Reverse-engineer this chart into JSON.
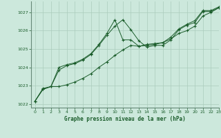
{
  "title": "Graphe pression niveau de la mer (hPa)",
  "background_color": "#cce8dc",
  "grid_color": "#aaccbb",
  "line_color": "#1a5c2a",
  "xlim": [
    -0.5,
    23
  ],
  "ylim": [
    1021.8,
    1027.6
  ],
  "yticks": [
    1022,
    1023,
    1024,
    1025,
    1026,
    1027
  ],
  "xticks": [
    0,
    1,
    2,
    3,
    4,
    5,
    6,
    7,
    8,
    9,
    10,
    11,
    12,
    13,
    14,
    15,
    16,
    17,
    18,
    19,
    20,
    21,
    22,
    23
  ],
  "series1_x": [
    0,
    1,
    2,
    3,
    4,
    5,
    6,
    7,
    8,
    9,
    10,
    11,
    12,
    13,
    14,
    15,
    16,
    17,
    18,
    19,
    20,
    21,
    22,
    23
  ],
  "series1_y": [
    1022.15,
    1022.85,
    1022.95,
    1023.85,
    1024.1,
    1024.2,
    1024.4,
    1024.7,
    1025.2,
    1025.75,
    1026.25,
    1026.6,
    1026.05,
    1025.45,
    1025.1,
    1025.2,
    1025.2,
    1025.5,
    1026.05,
    1026.3,
    1026.45,
    1027.05,
    1027.05,
    1027.25
  ],
  "series2_x": [
    0,
    1,
    2,
    3,
    4,
    5,
    6,
    7,
    8,
    9,
    10,
    11,
    12,
    13,
    14,
    15,
    16,
    17,
    18,
    19,
    20,
    21,
    22,
    23
  ],
  "series2_y": [
    1022.15,
    1022.8,
    1022.95,
    1024.0,
    1024.15,
    1024.25,
    1024.45,
    1024.75,
    1025.25,
    1025.85,
    1026.6,
    1025.5,
    1025.5,
    1025.15,
    1025.25,
    1025.3,
    1025.35,
    1025.65,
    1026.1,
    1026.35,
    1026.55,
    1027.1,
    1027.1,
    1027.3
  ],
  "series3_x": [
    0,
    1,
    2,
    3,
    4,
    5,
    6,
    7,
    8,
    9,
    10,
    11,
    12,
    13,
    14,
    15,
    16,
    17,
    18,
    19,
    20,
    21,
    22,
    23
  ],
  "series3_y": [
    1022.15,
    1022.8,
    1022.95,
    1022.95,
    1023.05,
    1023.2,
    1023.4,
    1023.65,
    1024.0,
    1024.3,
    1024.65,
    1024.95,
    1025.2,
    1025.15,
    1025.2,
    1025.25,
    1025.35,
    1025.55,
    1025.85,
    1026.0,
    1026.25,
    1026.8,
    1027.0,
    1027.25
  ]
}
